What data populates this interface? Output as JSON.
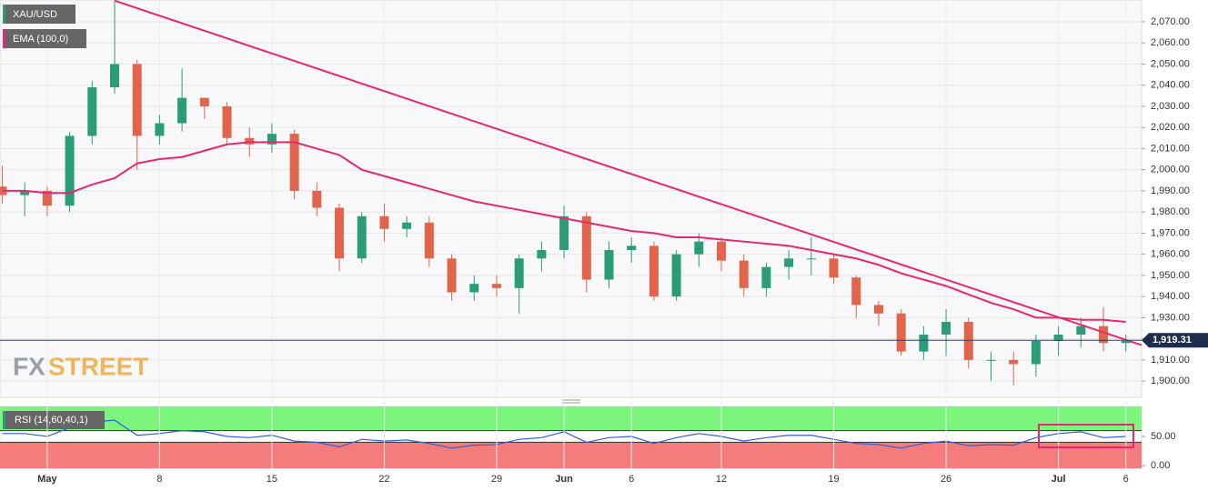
{
  "chart_data": [
    {
      "type": "candlestick",
      "name": "XAU/USD",
      "x": [
        -2,
        -1,
        0,
        1,
        2,
        3,
        4,
        5,
        6,
        7,
        8,
        9,
        10,
        11,
        12,
        13,
        14,
        15,
        16,
        17,
        18,
        19,
        20,
        21,
        22,
        23,
        24,
        25,
        26,
        27,
        28,
        29,
        30,
        31,
        32,
        33,
        34,
        35,
        36,
        37,
        38,
        39,
        40,
        41,
        42,
        43,
        44,
        45,
        46,
        47,
        48
      ],
      "open": [
        1992,
        1988,
        1990,
        1983,
        2016,
        2039,
        2050,
        2016,
        2022,
        2034,
        2030,
        2015,
        2012,
        2017,
        1990,
        1982,
        1958,
        1978,
        1972,
        1975,
        1958,
        1942,
        1946,
        1944,
        1958,
        1962,
        1978,
        1948,
        1962,
        1964,
        1940,
        1960,
        1966,
        1957,
        1944,
        1954,
        1958,
        1958,
        1949,
        1936,
        1932,
        1914,
        1922,
        1928,
        1910,
        1910,
        1908,
        1919,
        1922,
        1926,
        1918
      ],
      "high": [
        2002,
        1994,
        1992,
        2018,
        2042,
        2080,
        2052,
        2026,
        2048,
        2034,
        2032,
        2020,
        2022,
        2019,
        1994,
        1984,
        1980,
        1984,
        1978,
        1978,
        1960,
        1950,
        1950,
        1960,
        1966,
        1983,
        1980,
        1966,
        1968,
        1966,
        1962,
        1970,
        1968,
        1960,
        1956,
        1962,
        1968,
        1960,
        1950,
        1938,
        1934,
        1926,
        1934,
        1930,
        1914,
        1914,
        1922,
        1926,
        1930,
        1935,
        1922
      ],
      "low": [
        1984,
        1978,
        1978,
        1980,
        2012,
        2036,
        2000,
        2012,
        2018,
        2024,
        2012,
        2006,
        2008,
        1986,
        1978,
        1952,
        1956,
        1966,
        1968,
        1954,
        1938,
        1938,
        1940,
        1932,
        1952,
        1958,
        1942,
        1944,
        1956,
        1938,
        1938,
        1954,
        1952,
        1940,
        1940,
        1948,
        1950,
        1946,
        1930,
        1926,
        1912,
        1910,
        1912,
        1906,
        1900,
        1898,
        1902,
        1912,
        1916,
        1914,
        1914
      ],
      "close": [
        1988,
        1990,
        1983,
        2016,
        2039,
        2050,
        2016,
        2022,
        2034,
        2030,
        2015,
        2012,
        2017,
        1990,
        1982,
        1958,
        1978,
        1972,
        1975,
        1958,
        1942,
        1946,
        1944,
        1958,
        1962,
        1978,
        1948,
        1962,
        1964,
        1940,
        1960,
        1966,
        1957,
        1944,
        1954,
        1958,
        1958,
        1949,
        1936,
        1932,
        1914,
        1922,
        1928,
        1910,
        1910,
        1908,
        1919,
        1922,
        1926,
        1918,
        1919
      ],
      "up_color": "#2a9d78",
      "down_color": "#e0654b",
      "series": [
        {
          "name": "EMA (100,0)",
          "color": "#e8286e",
          "values": [
            1990,
            1990,
            1989,
            1989,
            1993,
            1996,
            2003,
            2005,
            2006,
            2009,
            2012,
            2013,
            2013,
            2013,
            2010,
            2007,
            2000,
            1997,
            1994,
            1991,
            1988,
            1985,
            1983,
            1981,
            1979,
            1977,
            1975,
            1973,
            1971,
            1970,
            1968,
            1968,
            1967,
            1966,
            1965,
            1964,
            1962,
            1960,
            1958,
            1955,
            1951,
            1948,
            1945,
            1941,
            1937,
            1934,
            1930,
            1930,
            1929,
            1929,
            1928
          ]
        }
      ],
      "trendline": {
        "x": [
          3,
          48.7
        ],
        "values": [
          2080,
          1917
        ],
        "color": "#e8286e"
      },
      "last_price": {
        "value": 1919.31,
        "label": "1,919.31"
      },
      "watermark": [
        "FX",
        "STREET"
      ],
      "xlim": [
        -2.1,
        48.7
      ],
      "ylim": [
        1892.3,
        2080.3
      ],
      "yticks": [
        {
          "value": 1900,
          "label": "1,900.00"
        },
        {
          "value": 1910,
          "label": "1,910.00"
        },
        {
          "value": 1920,
          "label": "1,920.00"
        },
        {
          "value": 1930,
          "label": "1,930.00"
        },
        {
          "value": 1940,
          "label": "1,940.00"
        },
        {
          "value": 1950,
          "label": "1,950.00"
        },
        {
          "value": 1960,
          "label": "1,960.00"
        },
        {
          "value": 1970,
          "label": "1,970.00"
        },
        {
          "value": 1980,
          "label": "1,980.00"
        },
        {
          "value": 1990,
          "label": "1,990.00"
        },
        {
          "value": 2000,
          "label": "2,000.00"
        },
        {
          "value": 2010,
          "label": "2,010.00"
        },
        {
          "value": 2020,
          "label": "2,020.00"
        },
        {
          "value": 2030,
          "label": "2,030.00"
        },
        {
          "value": 2040,
          "label": "2,040.00"
        },
        {
          "value": 2050,
          "label": "2,050.00"
        },
        {
          "value": 2060,
          "label": "2,060.00"
        },
        {
          "value": 2070,
          "label": "2,070.00"
        }
      ],
      "xticks": [
        {
          "value": 0,
          "label": "May"
        },
        {
          "value": 5,
          "label": "8"
        },
        {
          "value": 10,
          "label": "15"
        },
        {
          "value": 15,
          "label": "22"
        },
        {
          "value": 20,
          "label": "29"
        },
        {
          "value": 23,
          "label": "Jun"
        },
        {
          "value": 26,
          "label": "6"
        },
        {
          "value": 30,
          "label": "12"
        },
        {
          "value": 35,
          "label": "19"
        },
        {
          "value": 40,
          "label": "26"
        },
        {
          "value": 45,
          "label": "Jul"
        },
        {
          "value": 48,
          "label": "6"
        }
      ],
      "grid": true
    },
    {
      "type": "line",
      "name": "RSI (14,60,40,1)",
      "color": "#2f5fd6",
      "x": [
        -2,
        -1,
        0,
        1,
        2,
        3,
        4,
        5,
        6,
        7,
        8,
        9,
        10,
        11,
        12,
        13,
        14,
        15,
        16,
        17,
        18,
        19,
        20,
        21,
        22,
        23,
        24,
        25,
        26,
        27,
        28,
        29,
        30,
        31,
        32,
        33,
        34,
        35,
        36,
        37,
        38,
        39,
        40,
        41,
        42,
        43,
        44,
        45,
        46,
        47,
        48
      ],
      "values": [
        55,
        55,
        50,
        65,
        75,
        78,
        52,
        55,
        60,
        58,
        50,
        48,
        52,
        42,
        40,
        32,
        45,
        42,
        44,
        38,
        30,
        35,
        36,
        45,
        48,
        58,
        40,
        48,
        50,
        38,
        48,
        55,
        50,
        42,
        48,
        52,
        52,
        45,
        38,
        36,
        30,
        38,
        42,
        34,
        36,
        35,
        48,
        55,
        58,
        48,
        50
      ],
      "bands": [
        40,
        60
      ],
      "band_colors": [
        "#f47c7c",
        "#7cf57c"
      ],
      "xlim": [
        -2.1,
        48.7
      ],
      "ylim": [
        -4.7,
        101.6
      ],
      "yticks": [
        {
          "value": 0,
          "label": "0.00"
        },
        {
          "value": 50,
          "label": "50.00"
        }
      ]
    }
  ]
}
